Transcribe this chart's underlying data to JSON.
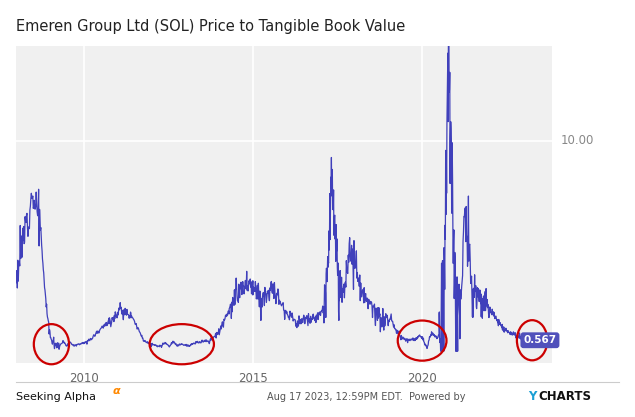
{
  "title": "Emeren Group Ltd (SOL) Price to Tangible Book Value",
  "title_fontsize": 10.5,
  "line_color": "#4040bb",
  "background_color": "#ffffff",
  "plot_bg_color": "#f0f0f0",
  "grid_color": "#ffffff",
  "ytick_label": "10.00",
  "ylabel_value": 10.0,
  "circle_color": "#cc0000",
  "badge_color": "#5050bb",
  "badge_text": "0.567",
  "footer_y_color": "#1a9fd4",
  "xmin": 2008.0,
  "xmax": 2023.85,
  "ymin": -0.5,
  "ymax": 14.5,
  "xticks": [
    2010,
    2015,
    2020
  ],
  "xtick_labels": [
    "2010",
    "2015",
    "2020"
  ]
}
